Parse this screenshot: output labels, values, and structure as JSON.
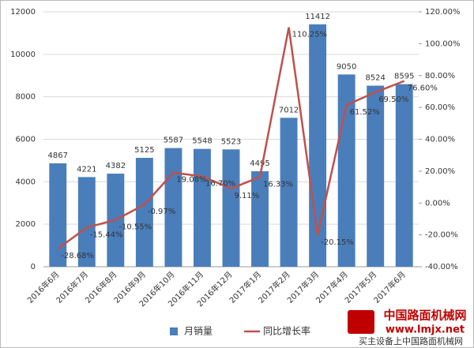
{
  "chart_data": {
    "type": "bar-line",
    "categories": [
      "2016年6月",
      "2016年7月",
      "2016年8月",
      "2016年9月",
      "2016年10月",
      "2016年11月",
      "2016年12月",
      "2017年1月",
      "2017年2月",
      "2017年3月",
      "2017年4月",
      "2017年5月",
      "2017年6月"
    ],
    "series": [
      {
        "name": "月销量",
        "color": "#4a7ebb",
        "type": "bar",
        "values": [
          4867,
          4221,
          4382,
          5125,
          5587,
          5548,
          5523,
          4495,
          7012,
          11412,
          9050,
          8524,
          8595
        ]
      },
      {
        "name": "同比增长率",
        "color": "#c0504d",
        "type": "line",
        "axis": "y2",
        "values": [
          -28.68,
          -15.44,
          -10.55,
          -0.97,
          19.08,
          16.7,
          9.11,
          16.33,
          110.25,
          -20.15,
          61.52,
          69.5,
          76.6
        ],
        "value_labels": [
          "-28.68%",
          "-15.44%",
          "-10.55%",
          "-0.97%",
          "19.08%",
          "16.70%",
          "9.11%",
          "16.33%",
          "110.25%",
          "-20.15%",
          "61.52%",
          "69.50%",
          "76.60%"
        ]
      }
    ],
    "ylim": [
      0,
      12000
    ],
    "yticks": [
      0,
      2000,
      4000,
      6000,
      8000,
      10000,
      12000
    ],
    "y2lim": [
      -40,
      120
    ],
    "y2ticks": [
      {
        "value": -40,
        "label": "-40.00%"
      },
      {
        "value": -20,
        "label": "-20.00%"
      },
      {
        "value": 0,
        "label": "0.00%"
      },
      {
        "value": 20,
        "label": "20.00%"
      },
      {
        "value": 40,
        "label": "40.00%"
      },
      {
        "value": 60,
        "label": "60.00%"
      },
      {
        "value": 80,
        "label": "80.00%"
      },
      {
        "value": 100,
        "label": "100.00%"
      },
      {
        "value": 120,
        "label": "120.00%"
      }
    ],
    "grid": true,
    "legend": "bottom"
  },
  "watermark": {
    "name": "中国路面机械网",
    "url": "www.lmjx.net",
    "slogan": "买主设备上中国路面机械网"
  }
}
